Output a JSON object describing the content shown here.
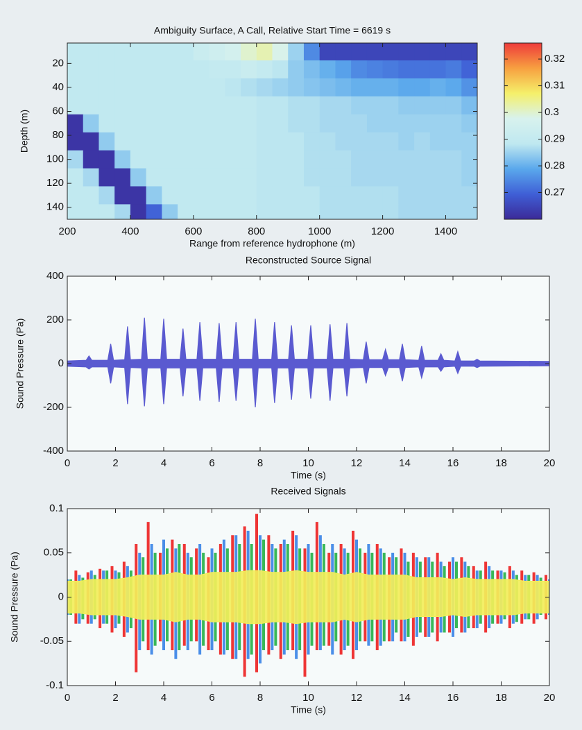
{
  "chart_data": [
    {
      "type": "heatmap",
      "title": "Ambiguity Surface, A Call, Relative Start Time = 6619 s",
      "xlabel": "Range from reference hydrophone (m)",
      "ylabel": "Depth (m)",
      "x": [
        225,
        275,
        325,
        375,
        425,
        475,
        525,
        575,
        625,
        675,
        725,
        775,
        825,
        875,
        925,
        975,
        1025,
        1075,
        1125,
        1175,
        1225,
        1275,
        1325,
        1375,
        1425,
        1475
      ],
      "y": [
        10,
        25,
        40,
        55,
        70,
        85,
        100,
        115,
        130,
        145
      ],
      "z": [
        [
          0.289,
          0.289,
          0.289,
          0.289,
          0.289,
          0.289,
          0.289,
          0.289,
          0.292,
          0.294,
          0.296,
          0.3,
          0.302,
          0.298,
          0.285,
          0.275,
          0.265,
          0.265,
          0.265,
          0.265,
          0.265,
          0.265,
          0.265,
          0.265,
          0.265,
          0.265
        ],
        [
          0.289,
          0.289,
          0.289,
          0.289,
          0.289,
          0.289,
          0.289,
          0.289,
          0.289,
          0.29,
          0.29,
          0.292,
          0.29,
          0.288,
          0.284,
          0.282,
          0.28,
          0.278,
          0.275,
          0.274,
          0.273,
          0.272,
          0.272,
          0.272,
          0.273,
          0.27
        ],
        [
          0.289,
          0.289,
          0.289,
          0.289,
          0.289,
          0.289,
          0.289,
          0.289,
          0.289,
          0.289,
          0.288,
          0.287,
          0.286,
          0.285,
          0.284,
          0.283,
          0.282,
          0.281,
          0.28,
          0.28,
          0.28,
          0.279,
          0.279,
          0.28,
          0.279,
          0.276
        ],
        [
          0.289,
          0.289,
          0.289,
          0.289,
          0.289,
          0.289,
          0.289,
          0.289,
          0.289,
          0.289,
          0.289,
          0.289,
          0.288,
          0.288,
          0.287,
          0.287,
          0.286,
          0.286,
          0.285,
          0.285,
          0.285,
          0.284,
          0.284,
          0.284,
          0.284,
          0.282
        ],
        [
          0.262,
          0.284,
          0.289,
          0.289,
          0.289,
          0.289,
          0.289,
          0.289,
          0.289,
          0.289,
          0.289,
          0.289,
          0.288,
          0.288,
          0.287,
          0.287,
          0.286,
          0.286,
          0.286,
          0.285,
          0.285,
          0.285,
          0.285,
          0.285,
          0.285,
          0.284
        ],
        [
          0.262,
          0.262,
          0.284,
          0.289,
          0.289,
          0.289,
          0.289,
          0.289,
          0.289,
          0.289,
          0.289,
          0.289,
          0.288,
          0.288,
          0.288,
          0.287,
          0.287,
          0.286,
          0.286,
          0.286,
          0.286,
          0.285,
          0.286,
          0.285,
          0.285,
          0.285
        ],
        [
          0.286,
          0.262,
          0.262,
          0.284,
          0.289,
          0.289,
          0.289,
          0.289,
          0.289,
          0.289,
          0.289,
          0.289,
          0.288,
          0.288,
          0.288,
          0.287,
          0.287,
          0.287,
          0.286,
          0.286,
          0.286,
          0.286,
          0.286,
          0.286,
          0.286,
          0.285
        ],
        [
          0.289,
          0.286,
          0.262,
          0.262,
          0.284,
          0.289,
          0.289,
          0.289,
          0.289,
          0.289,
          0.289,
          0.289,
          0.288,
          0.288,
          0.288,
          0.287,
          0.287,
          0.287,
          0.286,
          0.286,
          0.286,
          0.286,
          0.286,
          0.286,
          0.286,
          0.285
        ],
        [
          0.289,
          0.289,
          0.286,
          0.262,
          0.262,
          0.284,
          0.289,
          0.289,
          0.289,
          0.289,
          0.289,
          0.289,
          0.288,
          0.288,
          0.288,
          0.288,
          0.287,
          0.287,
          0.287,
          0.287,
          0.287,
          0.286,
          0.286,
          0.286,
          0.286,
          0.286
        ],
        [
          0.289,
          0.289,
          0.289,
          0.286,
          0.262,
          0.27,
          0.284,
          0.289,
          0.289,
          0.289,
          0.289,
          0.289,
          0.288,
          0.288,
          0.288,
          0.288,
          0.287,
          0.287,
          0.287,
          0.287,
          0.287,
          0.286,
          0.286,
          0.286,
          0.286,
          0.286
        ]
      ],
      "xlim": [
        200,
        1500
      ],
      "xticks": [
        200,
        400,
        600,
        800,
        1000,
        1200,
        1400
      ],
      "ylim": [
        150,
        3
      ],
      "yticks": [
        20,
        40,
        60,
        80,
        100,
        120,
        140
      ],
      "clim": [
        0.26,
        0.326
      ],
      "cticks": [
        0.27,
        0.28,
        0.29,
        0.3,
        0.31,
        0.32
      ],
      "colormap": [
        "#3b2a98",
        "#3f5fd6",
        "#5aa8ec",
        "#bfe8f0",
        "#d8f2ee",
        "#f5f06a",
        "#f7a040",
        "#ee3b3b"
      ]
    },
    {
      "type": "band",
      "title": "Reconstructed Source Signal",
      "xlabel": "Time (s)",
      "ylabel": "Sound Pressure (Pa)",
      "color": "#5a5ad0",
      "x": [
        0,
        0.78,
        0.9,
        1.02,
        1.68,
        1.8,
        1.92,
        2.38,
        2.5,
        2.62,
        3.08,
        3.2,
        3.32,
        3.88,
        4,
        4.12,
        4.68,
        4.8,
        4.92,
        5.38,
        5.5,
        5.62,
        6.18,
        6.3,
        6.42,
        6.88,
        7,
        7.12,
        7.68,
        7.8,
        7.92,
        8.48,
        8.6,
        8.72,
        9.18,
        9.3,
        9.42,
        9.98,
        10.1,
        10.22,
        10.78,
        10.9,
        11.02,
        11.48,
        11.6,
        11.72,
        12.28,
        12.4,
        12.52,
        13.08,
        13.2,
        13.32,
        13.78,
        13.9,
        14.02,
        14.58,
        14.7,
        14.82,
        15.38,
        15.5,
        15.62,
        16.08,
        16.2,
        16.32,
        16.88,
        17,
        17.12,
        20
      ],
      "upper": [
        12,
        15,
        35,
        15,
        15,
        90,
        15,
        18,
        170,
        18,
        20,
        210,
        20,
        20,
        205,
        20,
        20,
        160,
        20,
        20,
        190,
        20,
        20,
        185,
        20,
        20,
        190,
        20,
        20,
        205,
        20,
        20,
        190,
        20,
        20,
        175,
        20,
        20,
        175,
        20,
        20,
        180,
        20,
        20,
        185,
        20,
        18,
        100,
        18,
        18,
        65,
        18,
        18,
        90,
        18,
        15,
        80,
        15,
        15,
        45,
        15,
        12,
        55,
        12,
        12,
        20,
        12,
        10
      ],
      "lower": [
        -12,
        -15,
        -25,
        -15,
        -15,
        -90,
        -15,
        -18,
        -185,
        -18,
        -20,
        -195,
        -20,
        -20,
        -185,
        -20,
        -20,
        -150,
        -20,
        -20,
        -170,
        -20,
        -20,
        -175,
        -20,
        -20,
        -170,
        -20,
        -20,
        -200,
        -20,
        -20,
        -180,
        -20,
        -20,
        -165,
        -20,
        -20,
        -160,
        -20,
        -20,
        -170,
        -20,
        -20,
        -150,
        -20,
        -18,
        -90,
        -18,
        -18,
        -55,
        -18,
        -18,
        -80,
        -18,
        -15,
        -65,
        -15,
        -15,
        -35,
        -15,
        -12,
        -45,
        -12,
        -12,
        -18,
        -12,
        -10
      ],
      "xlim": [
        0,
        20
      ],
      "xticks": [
        0,
        2,
        4,
        6,
        8,
        10,
        12,
        14,
        16,
        18,
        20
      ],
      "ylim": [
        -400,
        400
      ],
      "yticks": [
        -400,
        -200,
        0,
        200,
        400
      ]
    },
    {
      "type": "multiband",
      "title": "Received Signals",
      "xlabel": "Time (s)",
      "ylabel": "Sound Pressure (Pa)",
      "x": [
        0,
        0.5,
        1,
        1.5,
        2,
        2.5,
        3,
        3.5,
        4,
        4.5,
        5,
        5.5,
        6,
        6.5,
        7,
        7.5,
        8,
        8.5,
        9,
        9.5,
        10,
        10.5,
        11,
        11.5,
        12,
        12.5,
        13,
        13.5,
        14,
        14.5,
        15,
        15.5,
        16,
        16.5,
        17,
        17.5,
        18,
        18.5,
        19,
        19.5,
        20
      ],
      "series": [
        {
          "color": "#ee3535",
          "style": "spikes",
          "upper": [
            0.025,
            0.03,
            0.028,
            0.032,
            0.035,
            0.04,
            0.06,
            0.085,
            0.05,
            0.065,
            0.06,
            0.055,
            0.045,
            0.06,
            0.07,
            0.08,
            0.094,
            0.07,
            0.06,
            0.075,
            0.055,
            0.085,
            0.05,
            0.06,
            0.075,
            0.05,
            0.06,
            0.045,
            0.055,
            0.05,
            0.045,
            0.05,
            0.04,
            0.045,
            0.035,
            0.04,
            0.03,
            0.035,
            0.03,
            0.028,
            0.025
          ],
          "lower": [
            -0.025,
            -0.03,
            -0.03,
            -0.035,
            -0.04,
            -0.045,
            -0.085,
            -0.06,
            -0.05,
            -0.06,
            -0.055,
            -0.05,
            -0.06,
            -0.065,
            -0.07,
            -0.09,
            -0.085,
            -0.065,
            -0.07,
            -0.06,
            -0.09,
            -0.06,
            -0.055,
            -0.065,
            -0.07,
            -0.05,
            -0.06,
            -0.05,
            -0.05,
            -0.055,
            -0.045,
            -0.05,
            -0.04,
            -0.04,
            -0.035,
            -0.04,
            -0.03,
            -0.035,
            -0.03,
            -0.03,
            -0.025
          ]
        },
        {
          "color": "#4a8ee8",
          "style": "spikes",
          "upper": [
            0.02,
            0.025,
            0.03,
            0.03,
            0.03,
            0.035,
            0.05,
            0.06,
            0.065,
            0.055,
            0.05,
            0.06,
            0.055,
            0.065,
            0.07,
            0.075,
            0.07,
            0.06,
            0.065,
            0.07,
            0.06,
            0.07,
            0.06,
            0.055,
            0.065,
            0.06,
            0.055,
            0.05,
            0.05,
            0.045,
            0.045,
            0.04,
            0.045,
            0.04,
            0.03,
            0.035,
            0.03,
            0.03,
            0.025,
            0.025,
            0.02
          ],
          "lower": [
            -0.02,
            -0.03,
            -0.03,
            -0.03,
            -0.035,
            -0.04,
            -0.06,
            -0.065,
            -0.06,
            -0.07,
            -0.06,
            -0.065,
            -0.06,
            -0.065,
            -0.07,
            -0.07,
            -0.075,
            -0.06,
            -0.065,
            -0.07,
            -0.065,
            -0.06,
            -0.065,
            -0.06,
            -0.06,
            -0.055,
            -0.055,
            -0.05,
            -0.05,
            -0.045,
            -0.045,
            -0.04,
            -0.045,
            -0.04,
            -0.035,
            -0.035,
            -0.03,
            -0.03,
            -0.025,
            -0.025,
            -0.02
          ]
        },
        {
          "color": "#38b858",
          "style": "spikes",
          "upper": [
            0.02,
            0.022,
            0.025,
            0.03,
            0.028,
            0.03,
            0.045,
            0.05,
            0.055,
            0.06,
            0.045,
            0.05,
            0.05,
            0.055,
            0.06,
            0.06,
            0.065,
            0.055,
            0.06,
            0.055,
            0.05,
            0.06,
            0.05,
            0.05,
            0.055,
            0.05,
            0.05,
            0.045,
            0.04,
            0.04,
            0.04,
            0.035,
            0.04,
            0.035,
            0.03,
            0.03,
            0.028,
            0.025,
            0.025,
            0.022,
            0.02
          ],
          "lower": [
            -0.02,
            -0.025,
            -0.025,
            -0.03,
            -0.03,
            -0.035,
            -0.05,
            -0.055,
            -0.05,
            -0.06,
            -0.05,
            -0.055,
            -0.05,
            -0.06,
            -0.06,
            -0.065,
            -0.06,
            -0.055,
            -0.06,
            -0.06,
            -0.055,
            -0.055,
            -0.05,
            -0.055,
            -0.05,
            -0.05,
            -0.05,
            -0.04,
            -0.045,
            -0.04,
            -0.04,
            -0.04,
            -0.035,
            -0.035,
            -0.03,
            -0.03,
            -0.025,
            -0.028,
            -0.025,
            -0.02,
            -0.02
          ]
        },
        {
          "color": "#f2ee5a",
          "style": "band",
          "upper": [
            0.018,
            0.018,
            0.02,
            0.02,
            0.02,
            0.022,
            0.025,
            0.025,
            0.025,
            0.028,
            0.025,
            0.025,
            0.028,
            0.028,
            0.028,
            0.03,
            0.03,
            0.028,
            0.028,
            0.03,
            0.028,
            0.028,
            0.028,
            0.025,
            0.028,
            0.025,
            0.025,
            0.025,
            0.025,
            0.022,
            0.022,
            0.022,
            0.02,
            0.022,
            0.02,
            0.02,
            0.02,
            0.02,
            0.018,
            0.018,
            0.018
          ],
          "lower": [
            -0.018,
            -0.018,
            -0.02,
            -0.02,
            -0.02,
            -0.022,
            -0.025,
            -0.025,
            -0.025,
            -0.028,
            -0.025,
            -0.025,
            -0.028,
            -0.028,
            -0.028,
            -0.03,
            -0.03,
            -0.028,
            -0.028,
            -0.03,
            -0.028,
            -0.028,
            -0.028,
            -0.025,
            -0.028,
            -0.025,
            -0.025,
            -0.025,
            -0.025,
            -0.022,
            -0.022,
            -0.022,
            -0.02,
            -0.022,
            -0.02,
            -0.02,
            -0.02,
            -0.02,
            -0.018,
            -0.018,
            -0.018
          ]
        }
      ],
      "xlim": [
        0,
        20
      ],
      "xticks": [
        0,
        2,
        4,
        6,
        8,
        10,
        12,
        14,
        16,
        18,
        20
      ],
      "ylim": [
        -0.1,
        0.1
      ],
      "yticks": [
        -0.1,
        -0.05,
        0,
        0.05,
        0.1
      ]
    }
  ]
}
